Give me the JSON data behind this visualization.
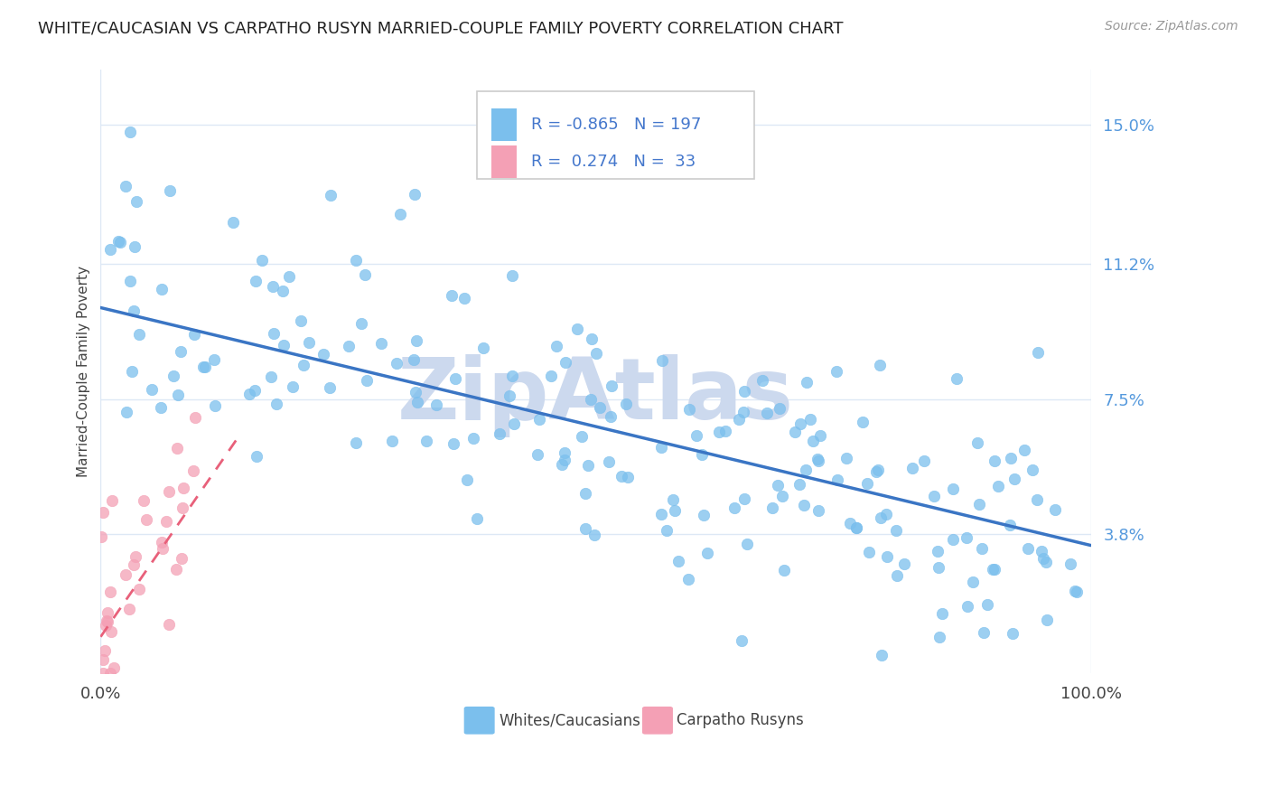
{
  "title": "WHITE/CAUCASIAN VS CARPATHO RUSYN MARRIED-COUPLE FAMILY POVERTY CORRELATION CHART",
  "source_text": "Source: ZipAtlas.com",
  "ylabel": "Married-Couple Family Poverty",
  "watermark": "ZipAtlas",
  "xlim": [
    0,
    100
  ],
  "ylim": [
    0,
    16.5
  ],
  "yticks": [
    3.8,
    7.5,
    11.2,
    15.0
  ],
  "xticks": [
    0,
    100
  ],
  "xtick_labels": [
    "0.0%",
    "100.0%"
  ],
  "ytick_labels": [
    "3.8%",
    "7.5%",
    "11.2%",
    "15.0%"
  ],
  "blue_R": -0.865,
  "blue_N": 197,
  "pink_R": 0.274,
  "pink_N": 33,
  "blue_color": "#7bbfed",
  "pink_color": "#f4a0b5",
  "blue_line_color": "#3a75c4",
  "pink_line_color": "#e8607a",
  "legend_label_blue": "Whites/Caucasians",
  "legend_label_pink": "Carpatho Rusyns",
  "title_fontsize": 13,
  "source_fontsize": 10,
  "watermark_color": "#ccd9ee",
  "grid_color": "#dde8f5",
  "background_color": "#ffffff",
  "blue_trend_start_y": 10.0,
  "blue_trend_end_y": 3.5,
  "pink_trend_start_x": 0.0,
  "pink_trend_start_y": 1.0,
  "pink_trend_end_x": 14.0,
  "pink_trend_end_y": 6.5
}
